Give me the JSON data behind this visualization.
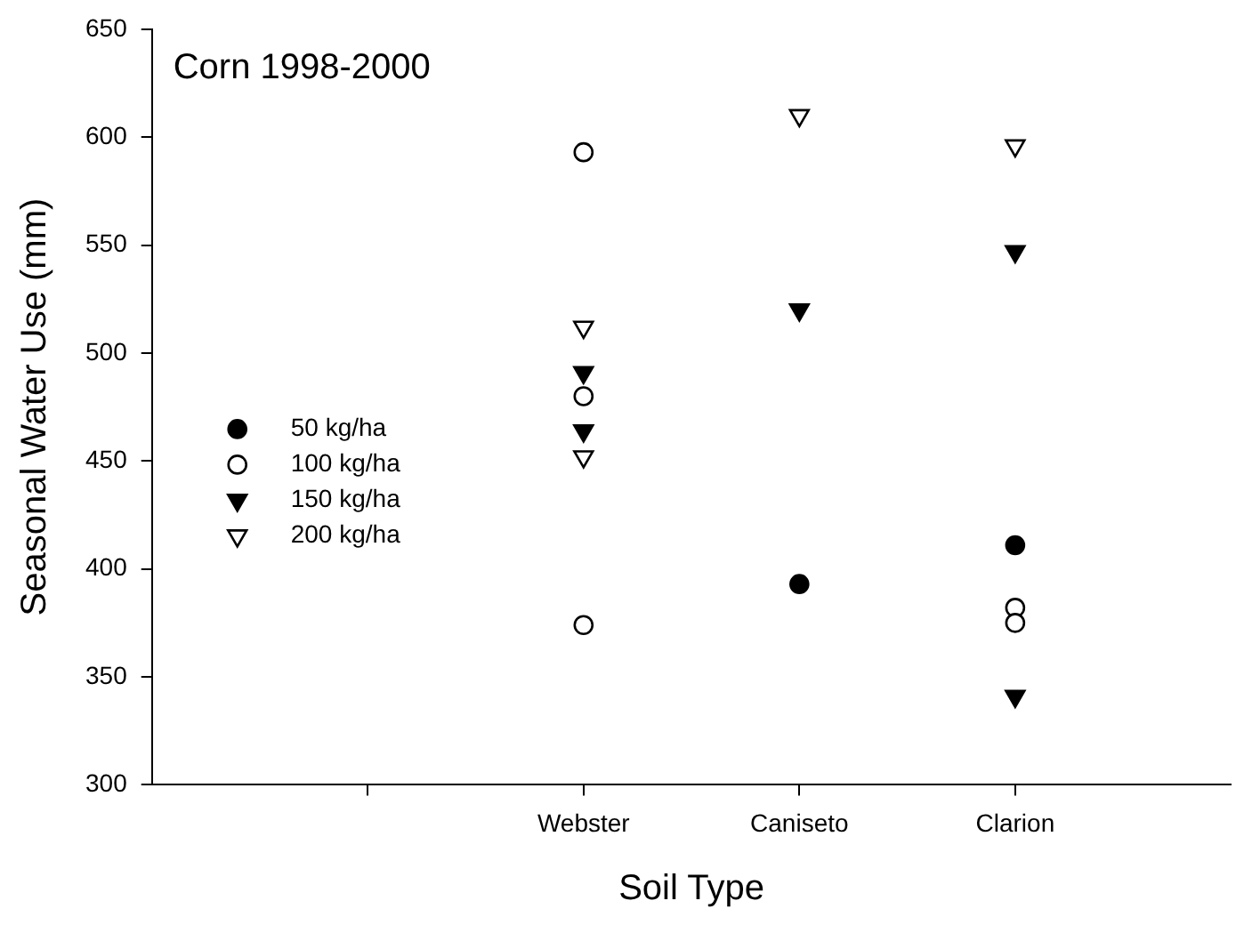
{
  "chart_data": {
    "type": "scatter",
    "title": "Corn 1998-2000",
    "xlabel": "Soil Type",
    "ylabel": "Seasonal Water Use (mm)",
    "categories": [
      null,
      "Webster",
      "Caniseto",
      "Clarion"
    ],
    "series": [
      {
        "name": "50 kg/ha",
        "color": "#000000",
        "marker": "circle",
        "x": [
          "Caniseto",
          "Clarion"
        ],
        "values": [
          393,
          411
        ]
      },
      {
        "name": "100 kg/ha",
        "color": "#000000",
        "marker": "circle-open",
        "x": [
          "Webster",
          "Webster",
          "Webster",
          "Clarion",
          "Clarion"
        ],
        "values": [
          593,
          480,
          374,
          382,
          375
        ]
      },
      {
        "name": "150 kg/ha",
        "color": "#000000",
        "marker": "triangle-down",
        "x": [
          "Webster",
          "Webster",
          "Caniseto",
          "Clarion",
          "Clarion"
        ],
        "values": [
          491,
          464,
          520,
          547,
          341
        ]
      },
      {
        "name": "200 kg/ha",
        "color": "#000000",
        "marker": "triangle-down-open",
        "x": [
          "Webster",
          "Webster",
          "Caniseto",
          "Clarion"
        ],
        "values": [
          512,
          452,
          610,
          596
        ]
      }
    ],
    "ylim": [
      300,
      650
    ],
    "yticks": [
      300,
      350,
      400,
      450,
      500,
      550,
      600,
      650
    ],
    "grid": false,
    "legend": "bottom left"
  }
}
